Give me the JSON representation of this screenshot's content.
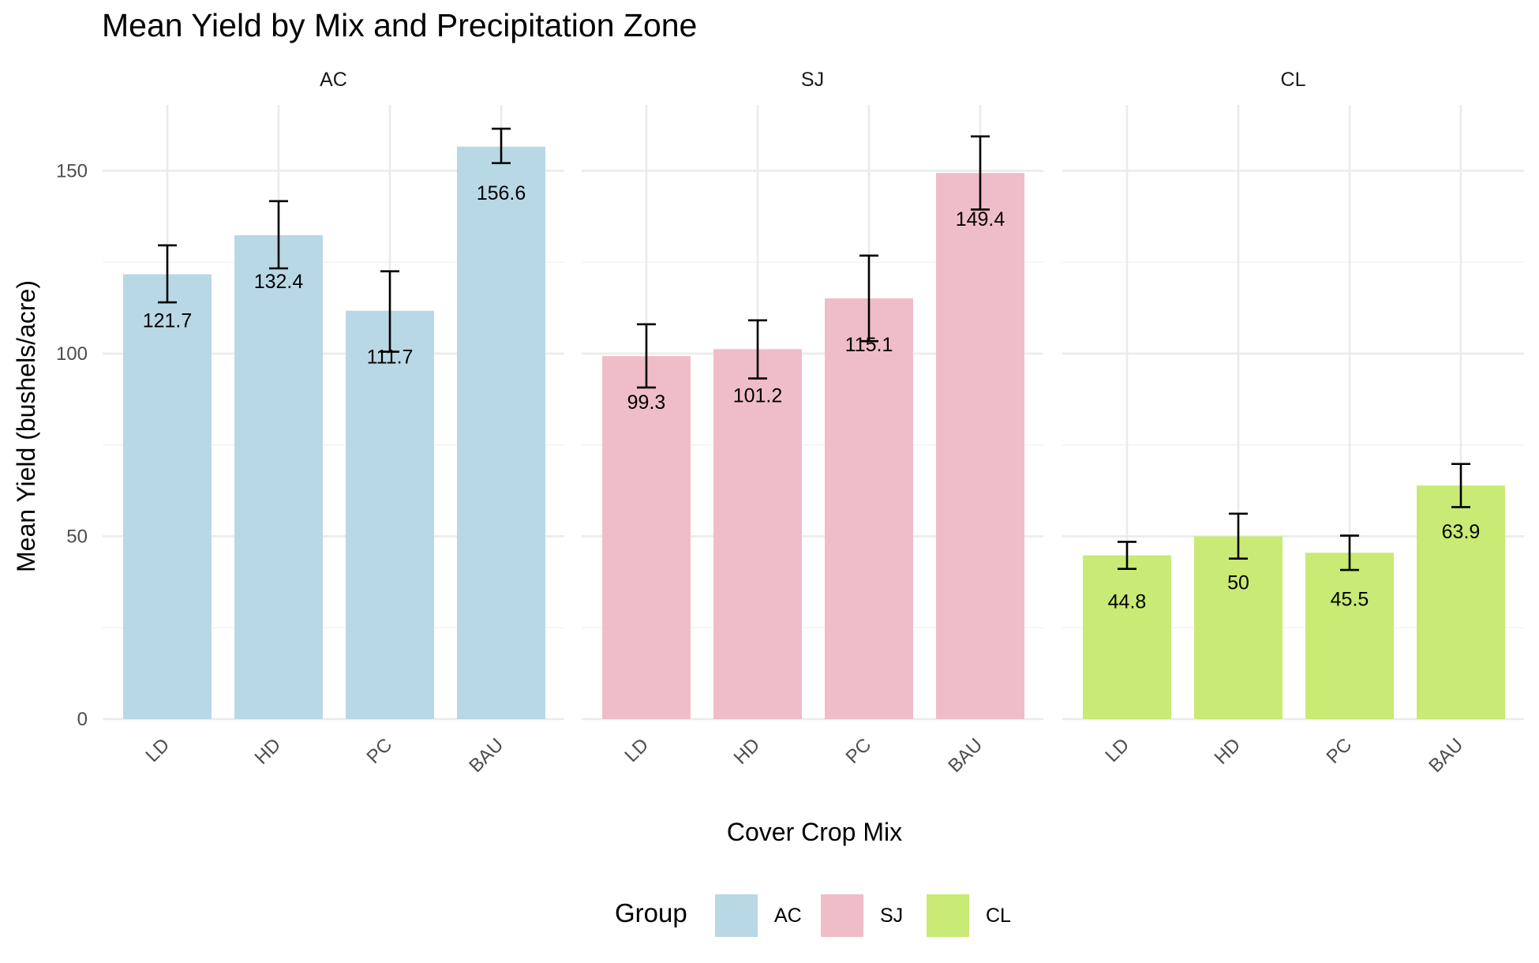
{
  "chart_data": {
    "type": "bar",
    "title": "Mean Yield by Mix and Precipitation Zone",
    "xlabel": "Cover Crop Mix",
    "ylabel": "Mean Yield (bushels/acre)",
    "categories": [
      "LD",
      "HD",
      "PC",
      "BAU"
    ],
    "y_ticks": [
      0,
      50,
      100,
      150
    ],
    "ylim": [
      0,
      168
    ],
    "grid": true,
    "legend": {
      "title": "Group",
      "position": "bottom",
      "items": [
        {
          "label": "AC",
          "color": "#b9d8e6"
        },
        {
          "label": "SJ",
          "color": "#efbdc8"
        },
        {
          "label": "CL",
          "color": "#c9ea74"
        }
      ]
    },
    "panels": [
      {
        "name": "AC",
        "color": "#b9d8e6",
        "values": [
          121.7,
          132.4,
          111.7,
          156.6
        ],
        "labels": [
          "121.7",
          "132.4",
          "111.7",
          "156.6"
        ],
        "error_low": [
          114,
          123.3,
          100.5,
          152.1
        ],
        "error_high": [
          129.6,
          141.7,
          122.5,
          161.5
        ]
      },
      {
        "name": "SJ",
        "color": "#efbdc8",
        "values": [
          99.3,
          101.2,
          115.1,
          149.4
        ],
        "labels": [
          "99.3",
          "101.2",
          "115.1",
          "149.4"
        ],
        "error_low": [
          90.7,
          93.2,
          103.4,
          139.4
        ],
        "error_high": [
          108,
          109.1,
          126.8,
          159.4
        ]
      },
      {
        "name": "CL",
        "color": "#c9ea74",
        "values": [
          44.8,
          50,
          45.5,
          63.9
        ],
        "labels": [
          "44.8",
          "50",
          "45.5",
          "63.9"
        ],
        "error_low": [
          41.1,
          43.9,
          40.8,
          58
        ],
        "error_high": [
          48.5,
          56.2,
          50.2,
          69.8
        ]
      }
    ]
  }
}
